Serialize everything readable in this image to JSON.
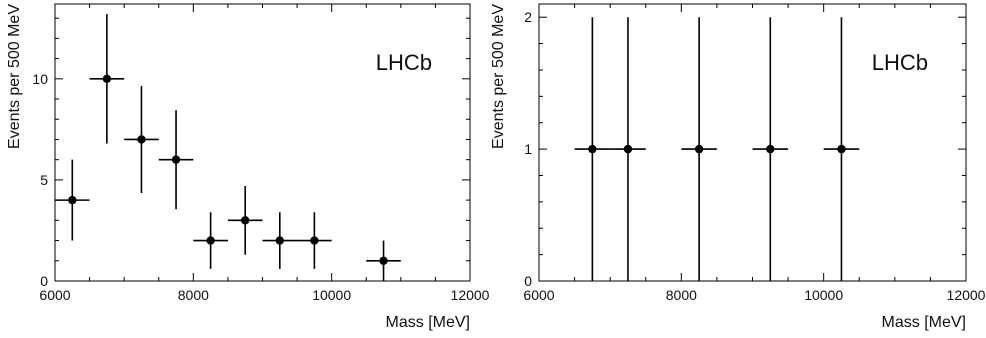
{
  "chart_data": [
    {
      "type": "scatter",
      "title": "",
      "annotation": "LHCb",
      "xlabel": "Mass [MeV]",
      "ylabel": "Events per 500 MeV",
      "xlim": [
        6000,
        12000
      ],
      "ylim": [
        0,
        13.7
      ],
      "xticks": [
        6000,
        8000,
        10000,
        12000
      ],
      "yticks": [
        0,
        5,
        10
      ],
      "grid": false,
      "bin_width": 500,
      "points": [
        {
          "x": 6250,
          "y": 4,
          "yerr_low": 2,
          "yerr_high": 2
        },
        {
          "x": 6750,
          "y": 10,
          "yerr_low": 3.2,
          "yerr_high": 3.2
        },
        {
          "x": 7250,
          "y": 7,
          "yerr_low": 2.65,
          "yerr_high": 2.65
        },
        {
          "x": 7750,
          "y": 6,
          "yerr_low": 2.45,
          "yerr_high": 2.45
        },
        {
          "x": 8250,
          "y": 2,
          "yerr_low": 1.4,
          "yerr_high": 1.4
        },
        {
          "x": 8750,
          "y": 3,
          "yerr_low": 1.7,
          "yerr_high": 1.7
        },
        {
          "x": 9250,
          "y": 2,
          "yerr_low": 1.4,
          "yerr_high": 1.4
        },
        {
          "x": 9750,
          "y": 2,
          "yerr_low": 1.4,
          "yerr_high": 1.4
        },
        {
          "x": 10750,
          "y": 1,
          "yerr_low": 1,
          "yerr_high": 1
        }
      ]
    },
    {
      "type": "scatter",
      "title": "",
      "annotation": "LHCb",
      "xlabel": "Mass [MeV]",
      "ylabel": "Events per 500 MeV",
      "xlim": [
        6000,
        12000
      ],
      "ylim": [
        0,
        2.1
      ],
      "xticks": [
        6000,
        8000,
        10000,
        12000
      ],
      "yticks": [
        0,
        1,
        2
      ],
      "grid": false,
      "bin_width": 500,
      "points": [
        {
          "x": 6750,
          "y": 1,
          "yerr_low": 1,
          "yerr_high": 1
        },
        {
          "x": 7250,
          "y": 1,
          "yerr_low": 1,
          "yerr_high": 1
        },
        {
          "x": 8250,
          "y": 1,
          "yerr_low": 1,
          "yerr_high": 1
        },
        {
          "x": 9250,
          "y": 1,
          "yerr_low": 1,
          "yerr_high": 1
        },
        {
          "x": 10250,
          "y": 1,
          "yerr_low": 1,
          "yerr_high": 1
        }
      ]
    }
  ]
}
